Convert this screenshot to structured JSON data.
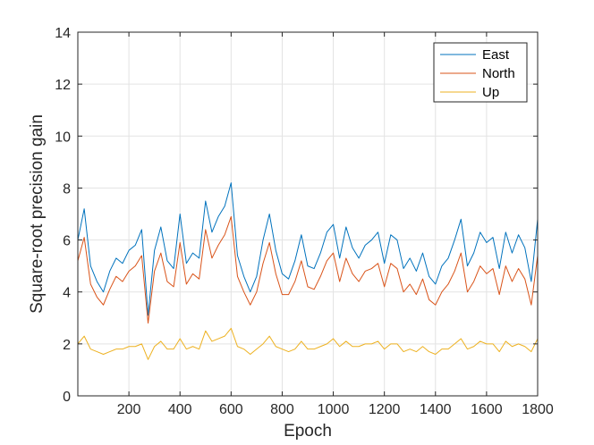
{
  "chart_data": {
    "type": "line",
    "title": "",
    "xlabel": "Epoch",
    "ylabel": "Square-root precision gain",
    "xlim": [
      0,
      1800
    ],
    "ylim": [
      0,
      14
    ],
    "xticks": [
      200,
      400,
      600,
      800,
      1000,
      1200,
      1400,
      1600,
      1800
    ],
    "yticks": [
      0,
      2,
      4,
      6,
      8,
      10,
      12,
      14
    ],
    "grid": true,
    "legend_position": "top-right",
    "x": [
      0,
      25,
      50,
      75,
      100,
      125,
      150,
      175,
      200,
      225,
      250,
      275,
      300,
      325,
      350,
      375,
      400,
      425,
      450,
      475,
      500,
      525,
      550,
      575,
      600,
      625,
      650,
      675,
      700,
      725,
      750,
      775,
      800,
      825,
      850,
      875,
      900,
      925,
      950,
      975,
      1000,
      1025,
      1050,
      1075,
      1100,
      1125,
      1150,
      1175,
      1200,
      1225,
      1250,
      1275,
      1300,
      1325,
      1350,
      1375,
      1400,
      1425,
      1450,
      1475,
      1500,
      1525,
      1550,
      1575,
      1600,
      1625,
      1650,
      1675,
      1700,
      1725,
      1750,
      1775,
      1800
    ],
    "series": [
      {
        "name": "East",
        "color": "#0072BD",
        "values": [
          6.0,
          7.2,
          5.0,
          4.4,
          4.0,
          4.8,
          5.3,
          5.1,
          5.6,
          5.8,
          6.4,
          3.1,
          5.6,
          6.5,
          5.2,
          4.9,
          7.0,
          5.1,
          5.5,
          5.3,
          7.5,
          6.3,
          6.9,
          7.3,
          8.2,
          5.4,
          4.6,
          4.0,
          4.6,
          6.0,
          7.0,
          5.6,
          4.7,
          4.5,
          5.2,
          6.2,
          5.0,
          4.9,
          5.5,
          6.3,
          6.6,
          5.3,
          6.5,
          5.7,
          5.3,
          5.8,
          6.0,
          6.3,
          5.1,
          6.2,
          6.0,
          4.9,
          5.3,
          4.8,
          5.5,
          4.6,
          4.3,
          5.0,
          5.3,
          6.0,
          6.8,
          5.0,
          5.5,
          6.3,
          5.9,
          6.1,
          4.9,
          6.3,
          5.5,
          6.2,
          5.7,
          4.4,
          6.8
        ]
      },
      {
        "name": "North",
        "color": "#D95319",
        "values": [
          5.2,
          6.1,
          4.3,
          3.8,
          3.5,
          4.1,
          4.6,
          4.4,
          4.8,
          5.0,
          5.4,
          2.8,
          4.8,
          5.5,
          4.4,
          4.2,
          5.9,
          4.3,
          4.7,
          4.5,
          6.4,
          5.3,
          5.8,
          6.2,
          6.9,
          4.6,
          4.0,
          3.5,
          4.0,
          5.1,
          5.9,
          4.7,
          3.9,
          3.9,
          4.4,
          5.2,
          4.2,
          4.1,
          4.6,
          5.2,
          5.5,
          4.4,
          5.3,
          4.7,
          4.4,
          4.8,
          4.9,
          5.1,
          4.2,
          5.1,
          4.9,
          4.0,
          4.3,
          3.9,
          4.5,
          3.7,
          3.5,
          4.0,
          4.3,
          4.8,
          5.5,
          4.0,
          4.4,
          5.0,
          4.7,
          4.9,
          3.9,
          5.0,
          4.4,
          4.9,
          4.5,
          3.5,
          5.4
        ]
      },
      {
        "name": "Up",
        "color": "#EDB120",
        "values": [
          2.0,
          2.3,
          1.8,
          1.7,
          1.6,
          1.7,
          1.8,
          1.8,
          1.9,
          1.9,
          2.0,
          1.4,
          1.9,
          2.1,
          1.8,
          1.8,
          2.2,
          1.8,
          1.9,
          1.8,
          2.5,
          2.1,
          2.2,
          2.3,
          2.6,
          1.9,
          1.8,
          1.6,
          1.8,
          2.0,
          2.3,
          1.9,
          1.8,
          1.7,
          1.8,
          2.1,
          1.8,
          1.8,
          1.9,
          2.0,
          2.2,
          1.9,
          2.1,
          1.9,
          1.9,
          2.0,
          2.0,
          2.1,
          1.8,
          2.0,
          2.0,
          1.7,
          1.8,
          1.7,
          1.9,
          1.7,
          1.6,
          1.8,
          1.8,
          2.0,
          2.2,
          1.8,
          1.9,
          2.1,
          2.0,
          2.0,
          1.7,
          2.1,
          1.9,
          2.0,
          1.9,
          1.7,
          2.2
        ]
      }
    ]
  }
}
